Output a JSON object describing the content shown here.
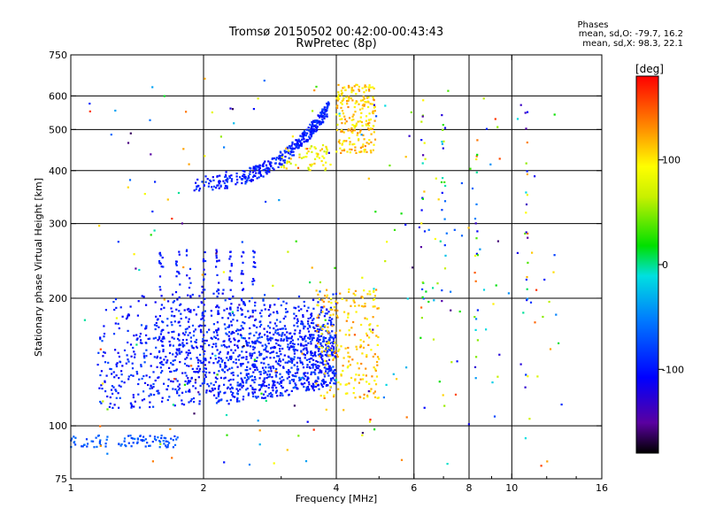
{
  "title": {
    "line1": "Tromsø 20150502 00:42:00-00:43:43",
    "line2": "RwPretec (8p)"
  },
  "stats": {
    "heading": "Phases",
    "line1": "mean, sd,O: -79.7, 16.2",
    "line2": "mean, sd,X:  98.3, 22.1"
  },
  "colorbar": {
    "label": "[deg]",
    "range": [
      -180,
      180
    ],
    "ticks": [
      {
        "value": 100,
        "label": "100"
      },
      {
        "value": 0,
        "label": "0"
      },
      {
        "value": -100,
        "label": "-100"
      }
    ]
  },
  "chart_data": {
    "type": "scatter",
    "title": "Tromsø 20150502 00:42:00-00:43:43",
    "subtitle": "RwPretec (8p)",
    "xlabel": "Frequency [MHz]",
    "ylabel": "Stationary phase Virtual Height [km]",
    "x_scale": "log",
    "y_scale": "log",
    "xlim": [
      1,
      16
    ],
    "ylim": [
      75,
      750
    ],
    "x_ticks": [
      1,
      2,
      4,
      6,
      8,
      10,
      16
    ],
    "y_ticks": [
      75,
      100,
      200,
      300,
      400,
      500,
      600,
      750
    ],
    "grid": true,
    "color_variable": "phase [deg]",
    "traces": [
      {
        "name": "",
        "x_range": [
          1.9,
          3.8
        ],
        "y_range": [
          355,
          560
        ],
        "phase_mean": -90
      },
      {
        "name": "",
        "x_range": [
          4.0,
          4.9
        ],
        "y_range": [
          440,
          640
        ],
        "phase_mean": 120
      },
      {
        "name": "",
        "x_range": [
          1.1,
          4.0
        ],
        "y_range": [
          110,
          260
        ],
        "phase_mean": -95
      },
      {
        "name": "",
        "x_range": [
          3.6,
          5.0
        ],
        "y_range": [
          115,
          210
        ],
        "phase_mean": 110
      },
      {
        "name": "",
        "x_range": [
          1.0,
          1.75
        ],
        "y_range": [
          88,
          96
        ],
        "phase_mean": -60
      }
    ]
  }
}
